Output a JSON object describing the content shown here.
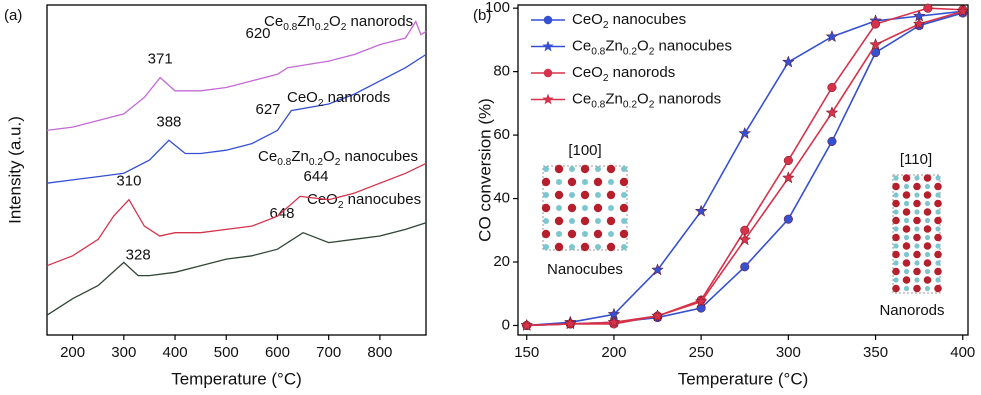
{
  "chart_data": [
    {
      "type": "line",
      "panel_label": "(a)",
      "x_label": "Temperature (°C)",
      "y_label": "Intensity (a.u.)",
      "xlim": [
        150,
        890
      ],
      "ylim": [
        0,
        100
      ],
      "xticks": [
        200,
        300,
        400,
        500,
        600,
        700,
        800
      ],
      "series": [
        {
          "name": "CeO2 nanocubes",
          "color": "#2f4636",
          "peaks": [
            328,
            648
          ],
          "x": [
            150,
            200,
            250,
            300,
            328,
            350,
            400,
            450,
            500,
            550,
            600,
            650,
            700,
            750,
            800,
            850,
            890
          ],
          "values": [
            6,
            11,
            15,
            22,
            18,
            18,
            19,
            21,
            23,
            24,
            26,
            31,
            28,
            29,
            30,
            32,
            34
          ]
        },
        {
          "name": "Ce0.8Zn0.2O2 nanocubes",
          "color": "#d6334b",
          "peaks": [
            310,
            644
          ],
          "x": [
            150,
            200,
            250,
            280,
            310,
            340,
            370,
            400,
            450,
            500,
            550,
            600,
            644,
            700,
            750,
            800,
            850,
            890
          ],
          "values": [
            21,
            24,
            29,
            36,
            41,
            33,
            30,
            31,
            31,
            32,
            33,
            36,
            42,
            41,
            43,
            46,
            49,
            52
          ]
        },
        {
          "name": "CeO2 nanorods",
          "color": "#3550d0",
          "peaks": [
            388,
            627
          ],
          "x": [
            150,
            200,
            250,
            300,
            350,
            388,
            420,
            450,
            500,
            550,
            600,
            627,
            700,
            750,
            800,
            850,
            890
          ],
          "values": [
            46,
            47,
            48,
            49,
            53,
            59,
            55,
            55,
            56,
            58,
            62,
            68,
            70,
            73,
            77,
            81,
            85
          ]
        },
        {
          "name": "Ce0.8Zn0.2O2 nanorods",
          "color": "#c46ad6",
          "peaks": [
            371,
            620
          ],
          "x": [
            150,
            200,
            250,
            300,
            340,
            371,
            400,
            450,
            500,
            550,
            600,
            620,
            700,
            750,
            800,
            850,
            870,
            880,
            890
          ],
          "values": [
            62,
            63,
            65,
            67,
            72,
            78,
            74,
            74,
            75,
            77,
            79,
            81,
            83,
            85,
            88,
            90,
            95,
            91,
            92
          ]
        }
      ]
    },
    {
      "type": "line",
      "panel_label": "(b)",
      "x_label": "Temperature (°C)",
      "y_label": "CO conversion (%)",
      "xlim": [
        145,
        403
      ],
      "ylim": [
        -3,
        101
      ],
      "xticks": [
        150,
        200,
        250,
        300,
        350,
        400
      ],
      "yticks": [
        0,
        20,
        40,
        60,
        80,
        100
      ],
      "legend": "upper left",
      "insets": [
        {
          "direction": "[100]",
          "label": "Nanocubes"
        },
        {
          "direction": "[110]",
          "label": "Nanorods"
        }
      ],
      "series": [
        {
          "name": "CeO2 nanocubes",
          "color": "#3550d0",
          "marker": "circle",
          "x": [
            150,
            175,
            200,
            225,
            250,
            275,
            300,
            325,
            350,
            375,
            400
          ],
          "values": [
            0,
            0.5,
            1,
            2.5,
            5.5,
            18.5,
            33.5,
            58,
            86,
            94.5,
            98.5
          ]
        },
        {
          "name": "Ce0.8Zn0.2O2 nanocubes",
          "color": "#3550d0",
          "marker": "star",
          "x": [
            150,
            175,
            200,
            225,
            250,
            275,
            300,
            325,
            350,
            375,
            400
          ],
          "values": [
            0,
            1,
            3.5,
            17.5,
            36,
            60.5,
            83,
            91,
            96,
            97.5,
            99
          ]
        },
        {
          "name": "CeO2 nanorods",
          "color": "#d6334b",
          "marker": "circle",
          "x": [
            150,
            175,
            200,
            225,
            250,
            275,
            300,
            325,
            350,
            380,
            400
          ],
          "values": [
            0,
            0.5,
            0.5,
            3,
            8,
            30,
            52,
            75,
            95,
            100,
            99.5
          ]
        },
        {
          "name": "Ce0.8Zn0.2O2 nanorods",
          "color": "#d6334b",
          "marker": "star",
          "x": [
            150,
            175,
            200,
            225,
            250,
            275,
            300,
            325,
            350,
            375,
            400
          ],
          "values": [
            0,
            0.5,
            1,
            3,
            7.5,
            27,
            46.5,
            67,
            88.5,
            95,
            99
          ]
        }
      ]
    }
  ]
}
